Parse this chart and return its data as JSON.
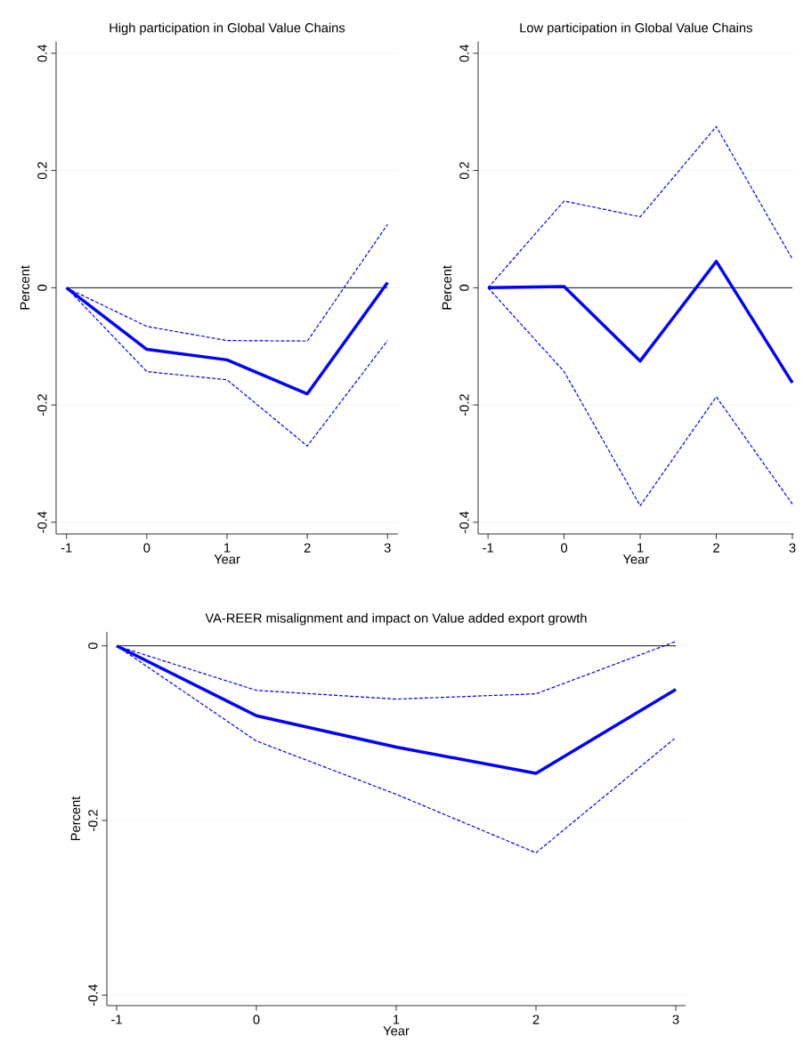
{
  "chart_data": [
    {
      "type": "line",
      "title": "High participation in Global Value Chains",
      "xlabel": "Year",
      "ylabel": "Percent",
      "x": [
        -1,
        0,
        1,
        2,
        3
      ],
      "series": [
        {
          "color": "#0000ff",
          "line_style": "solid",
          "values": [
            0,
            -0.105,
            -0.123,
            -0.181,
            0.009
          ]
        },
        {
          "color": "#0000ff",
          "line_style": "dashed",
          "values": [
            0,
            -0.066,
            -0.09,
            -0.091,
            0.108
          ]
        },
        {
          "color": "#0000ff",
          "line_style": "dashed",
          "values": [
            0,
            -0.143,
            -0.157,
            -0.27,
            -0.09
          ]
        }
      ],
      "xlim": [
        -1.13,
        3.13
      ],
      "ylim": [
        -0.42,
        0.42
      ],
      "xticks": [
        -1,
        0,
        1,
        2,
        3
      ],
      "yticks": [
        -0.4,
        -0.2,
        0,
        0.2,
        0.4
      ],
      "grid": "y",
      "ref_lines": [
        {
          "axis": "y",
          "value": 0,
          "color": "#000000"
        }
      ]
    },
    {
      "type": "line",
      "title": "Low participation in Global Value Chains",
      "xlabel": "Year",
      "ylabel": "Percent",
      "x": [
        -1,
        0,
        1,
        2,
        3
      ],
      "series": [
        {
          "color": "#0000ff",
          "line_style": "solid",
          "values": [
            0,
            0.002,
            -0.125,
            0.045,
            -0.162
          ]
        },
        {
          "color": "#0000ff",
          "line_style": "dashed",
          "values": [
            0,
            0.148,
            0.121,
            0.275,
            0.049
          ]
        },
        {
          "color": "#0000ff",
          "line_style": "dashed",
          "values": [
            0,
            -0.143,
            -0.372,
            -0.186,
            -0.369
          ]
        }
      ],
      "xlim": [
        -1.13,
        3.02
      ],
      "ylim": [
        -0.42,
        0.42
      ],
      "xticks": [
        -1,
        0,
        1,
        2,
        3
      ],
      "yticks": [
        -0.4,
        -0.2,
        0,
        0.2,
        0.4
      ],
      "grid": "y",
      "ref_lines": [
        {
          "axis": "y",
          "value": 0,
          "color": "#000000"
        }
      ]
    },
    {
      "type": "line",
      "title": "VA-REER misalignment and impact on Value added export growth",
      "xlabel": "Year",
      "ylabel": "Percent",
      "x": [
        -1,
        0,
        1,
        2,
        3
      ],
      "series": [
        {
          "color": "#0000ff",
          "line_style": "solid",
          "values": [
            0,
            -0.08,
            -0.116,
            -0.146,
            -0.05
          ]
        },
        {
          "color": "#0000ff",
          "line_style": "dashed",
          "values": [
            0,
            -0.051,
            -0.061,
            -0.055,
            0.005
          ]
        },
        {
          "color": "#0000ff",
          "line_style": "dashed",
          "values": [
            0,
            -0.109,
            -0.17,
            -0.237,
            -0.105
          ]
        }
      ],
      "xlim": [
        -1.07,
        3.07
      ],
      "ylim": [
        -0.412,
        0.016
      ],
      "xticks": [
        -1,
        0,
        1,
        2,
        3
      ],
      "yticks": [
        -0.4,
        -0.2,
        0
      ],
      "grid": "y",
      "ref_lines": [
        {
          "axis": "y",
          "value": 0,
          "color": "#000000"
        }
      ]
    }
  ]
}
